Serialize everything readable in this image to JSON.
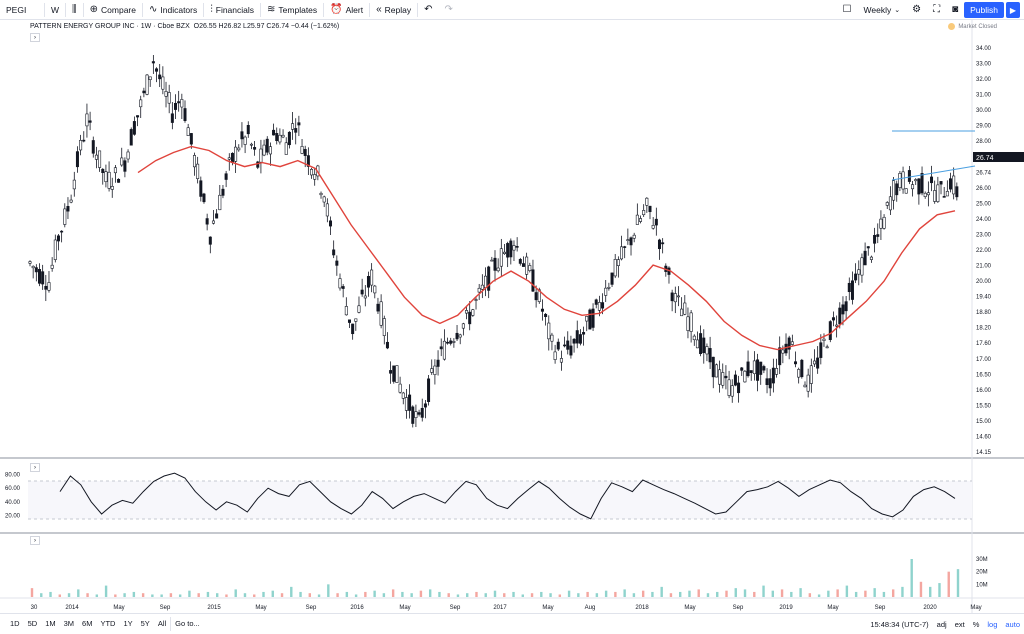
{
  "toolbar": {
    "symbol": "PEGI",
    "interval": "W",
    "compare": "Compare",
    "indicators": "Indicators",
    "financials": "Financials",
    "templates": "Templates",
    "alert": "Alert",
    "replay": "Replay",
    "layout": "Weekly",
    "publish": "Publish"
  },
  "legend": {
    "title": "PATTERN ENERGY GROUP INC · 1W · Cboe BZX",
    "ohlc": "O26.55 H26.82 L25.97 C26.74 −0.44 (−1.62%)",
    "market_status": "Market Closed"
  },
  "bottom": {
    "ranges": [
      "1D",
      "5D",
      "1M",
      "3M",
      "6M",
      "YTD",
      "1Y",
      "5Y",
      "All"
    ],
    "goto": "Go to...",
    "time": "15:48:34 (UTC-7)",
    "adj": "adj",
    "ext": "ext",
    "pct": "%",
    "log": "log",
    "auto": "auto"
  },
  "chart_data": {
    "type": "candlestick",
    "price_axis_ticks": [
      "34.00",
      "33.00",
      "32.00",
      "31.00",
      "30.00",
      "29.00",
      "28.00",
      "27.00",
      "26.74",
      "26.00",
      "25.00",
      "24.00",
      "23.00",
      "22.00",
      "21.00",
      "20.00",
      "19.40",
      "18.80",
      "18.20",
      "17.60",
      "17.00",
      "16.50",
      "16.00",
      "15.50",
      "15.00",
      "14.60",
      "14.15"
    ],
    "last_price": "26.74",
    "time_axis_ticks": [
      "30",
      "2014",
      "May",
      "Sep",
      "2015",
      "May",
      "Sep",
      "2016",
      "May",
      "Sep",
      "2017",
      "May",
      "Aug",
      "2018",
      "May",
      "Sep",
      "2019",
      "May",
      "Sep",
      "2020",
      "May"
    ],
    "price_points": [
      23.5,
      23.0,
      22.6,
      24.8,
      26.2,
      28.5,
      30.6,
      29.0,
      27.6,
      27.8,
      28.6,
      30.4,
      31.8,
      33.6,
      32.2,
      31.0,
      31.8,
      29.4,
      27.2,
      25.0,
      26.6,
      28.2,
      29.4,
      29.8,
      28.4,
      29.2,
      30.0,
      29.5,
      30.6,
      29.0,
      28.2,
      27.0,
      24.2,
      22.0,
      20.2,
      21.6,
      22.8,
      21.0,
      18.6,
      17.4,
      16.4,
      15.5,
      17.2,
      18.6,
      19.6,
      20.2,
      20.6,
      21.5,
      22.4,
      23.4,
      24.0,
      24.6,
      23.6,
      22.6,
      21.2,
      19.4,
      19.0,
      19.3,
      19.8,
      20.6,
      21.4,
      22.6,
      23.4,
      24.4,
      25.4,
      26.2,
      25.4,
      23.4,
      21.6,
      21.0,
      20.2,
      19.2,
      18.4,
      17.6,
      17.3,
      17.8,
      18.4,
      18.0,
      17.6,
      18.8,
      19.8,
      18.4,
      17.5,
      18.6,
      19.8,
      20.8,
      21.6,
      22.6,
      23.8,
      24.3,
      25.6,
      27.2,
      27.6,
      27.5,
      27.4,
      27.2,
      27.0,
      27.6,
      26.74
    ],
    "ma_points": [
      28.0,
      28.6,
      29.0,
      29.3,
      29.1,
      28.6,
      28.3,
      28.5,
      28.3,
      28.6,
      28.2,
      26.8,
      25.4,
      24.2,
      23.0,
      21.8,
      20.9,
      20.5,
      20.9,
      21.8,
      22.6,
      23.1,
      22.6,
      21.8,
      21.2,
      20.9,
      21.0,
      21.6,
      22.4,
      23.4,
      23.1,
      22.4,
      21.6,
      20.6,
      19.9,
      19.4,
      19.2,
      19.4,
      19.6,
      20.0,
      20.8,
      21.6,
      22.6,
      24.0,
      25.2,
      25.9,
      26.1
    ],
    "rsi_ticks": [
      "80.00",
      "60.00",
      "40.00",
      "20.00"
    ],
    "rsi_points": [
      55,
      78,
      65,
      40,
      22,
      35,
      42,
      38,
      55,
      70,
      78,
      82,
      75,
      55,
      40,
      28,
      40,
      35,
      25,
      45,
      60,
      52,
      48,
      65,
      70,
      55,
      40,
      30,
      22,
      35,
      55,
      45,
      30,
      40,
      48,
      52,
      45,
      38,
      55,
      70,
      65,
      45,
      35,
      30,
      45,
      58,
      70,
      60,
      45,
      32,
      22,
      15,
      45,
      68,
      62,
      55,
      72,
      65,
      58,
      52,
      45,
      38,
      30,
      22,
      25,
      40,
      55,
      58,
      62,
      70,
      60,
      48,
      58,
      65,
      72,
      68,
      55,
      45,
      30,
      22,
      18,
      28,
      48,
      58,
      62,
      55,
      45
    ],
    "volume_ticks": [
      "30M",
      "20M",
      "10M"
    ],
    "volume_points": [
      7,
      3,
      4,
      2,
      3,
      6,
      3,
      2,
      9,
      2,
      3,
      4,
      3,
      2,
      2,
      3,
      2,
      5,
      3,
      4,
      3,
      2,
      6,
      3,
      2,
      4,
      5,
      3,
      8,
      4,
      3,
      2,
      10,
      3,
      4,
      2,
      4,
      5,
      3,
      6,
      4,
      3,
      5,
      6,
      4,
      3,
      2,
      3,
      4,
      3,
      5,
      3,
      4,
      2,
      3,
      4,
      3,
      2,
      5,
      3,
      4,
      3,
      5,
      4,
      6,
      3,
      5,
      4,
      8,
      3,
      4,
      5,
      6,
      3,
      4,
      5,
      7,
      6,
      4,
      9,
      5,
      6,
      4,
      7,
      3,
      2,
      5,
      6,
      9,
      4,
      5,
      7,
      4,
      6,
      8,
      30,
      12,
      8,
      11,
      20,
      22
    ]
  }
}
